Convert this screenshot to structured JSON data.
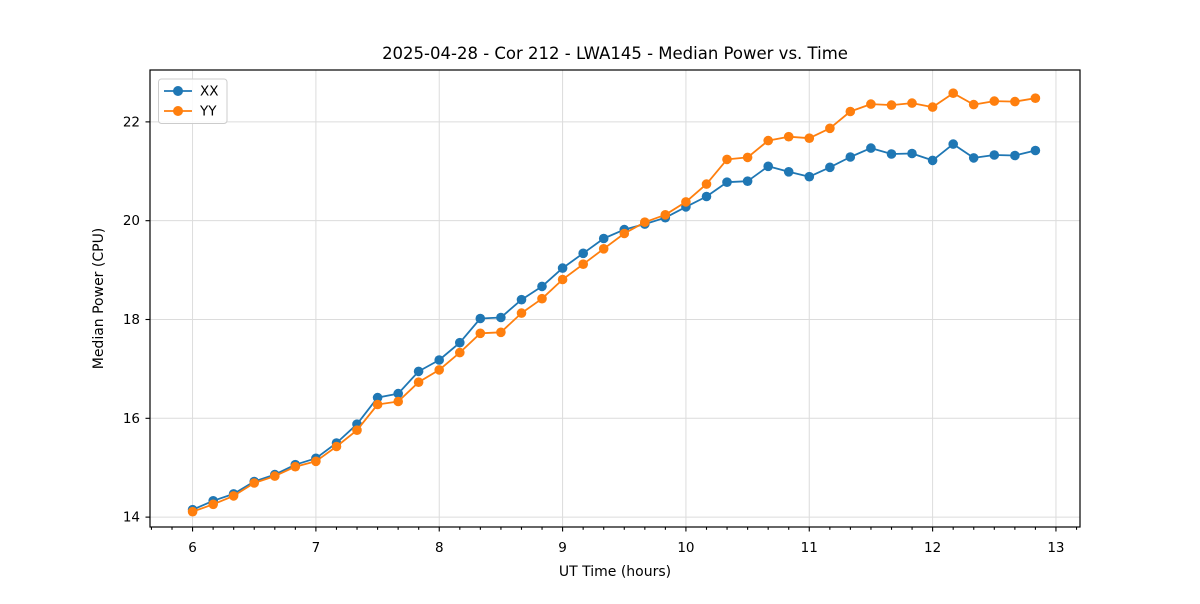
{
  "chart_data": {
    "type": "line",
    "title": "2025-04-28 - Cor 212 - LWA145 - Median Power vs. Time",
    "xlabel": "UT Time (hours)",
    "ylabel": "Median Power (CPU)",
    "xlim": [
      5.655,
      13.195
    ],
    "ylim": [
      13.8,
      23.05
    ],
    "xticks": [
      6,
      7,
      8,
      9,
      10,
      11,
      12,
      13
    ],
    "yticks": [
      14,
      16,
      18,
      20,
      22
    ],
    "x_minor_step": 0.16667,
    "grid": true,
    "legend_position": "upper left",
    "marker": "circle",
    "x": [
      6.0,
      6.167,
      6.333,
      6.5,
      6.667,
      6.833,
      7.0,
      7.167,
      7.333,
      7.5,
      7.667,
      7.833,
      8.0,
      8.167,
      8.333,
      8.5,
      8.667,
      8.833,
      9.0,
      9.167,
      9.333,
      9.5,
      9.667,
      9.833,
      10.0,
      10.167,
      10.333,
      10.5,
      10.667,
      10.833,
      11.0,
      11.167,
      11.333,
      11.5,
      11.667,
      11.833,
      12.0,
      12.167,
      12.333,
      12.5,
      12.667,
      12.833
    ],
    "series": [
      {
        "name": "XX",
        "color": "#1f77b4",
        "values": [
          14.15,
          14.33,
          14.47,
          14.72,
          14.86,
          15.06,
          15.19,
          15.5,
          15.88,
          16.42,
          16.5,
          16.95,
          17.18,
          17.53,
          18.02,
          18.04,
          18.4,
          18.67,
          19.04,
          19.34,
          19.64,
          19.82,
          19.93,
          20.06,
          20.28,
          20.49,
          20.78,
          20.8,
          21.1,
          20.99,
          20.89,
          21.08,
          21.29,
          21.47,
          21.35,
          21.36,
          21.22,
          21.55,
          21.27,
          21.33,
          21.32,
          21.42
        ]
      },
      {
        "name": "YY",
        "color": "#ff7f0e",
        "values": [
          14.11,
          14.26,
          14.43,
          14.69,
          14.83,
          15.02,
          15.13,
          15.43,
          15.76,
          16.28,
          16.34,
          16.73,
          16.98,
          17.33,
          17.72,
          17.74,
          18.13,
          18.42,
          18.81,
          19.12,
          19.43,
          19.74,
          19.97,
          20.12,
          20.38,
          20.74,
          21.24,
          21.28,
          21.62,
          21.7,
          21.67,
          21.87,
          22.21,
          22.36,
          22.34,
          22.38,
          22.3,
          22.58,
          22.35,
          22.42,
          22.41,
          22.48
        ]
      }
    ]
  }
}
